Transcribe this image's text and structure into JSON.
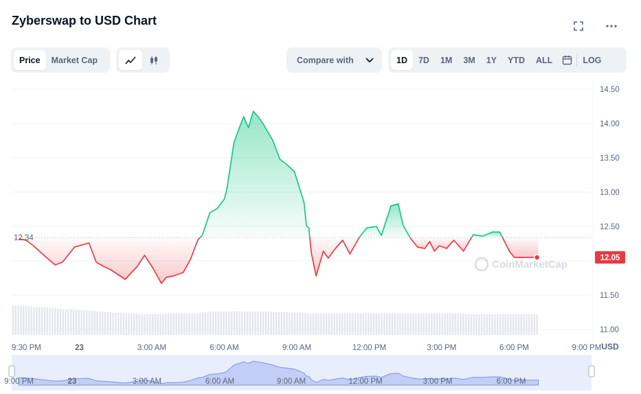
{
  "header": {
    "title": "Zyberswap to USD Chart",
    "fullscreen_icon": "fullscreen-icon",
    "more_icon": "more-dots-icon"
  },
  "toolbar": {
    "metric_tabs": [
      {
        "label": "Price",
        "active": true
      },
      {
        "label": "Market Cap",
        "active": false
      }
    ],
    "chart_type_icons": [
      "line-chart-icon",
      "candlestick-icon"
    ],
    "compare_label": "Compare with",
    "ranges": [
      {
        "label": "1D",
        "active": true
      },
      {
        "label": "7D",
        "active": false
      },
      {
        "label": "1M",
        "active": false
      },
      {
        "label": "3M",
        "active": false
      },
      {
        "label": "1Y",
        "active": false
      },
      {
        "label": "YTD",
        "active": false
      },
      {
        "label": "ALL",
        "active": false
      }
    ],
    "calendar_icon": "calendar-icon",
    "log_label": "LOG"
  },
  "colors": {
    "up": "#16c784",
    "down": "#ea3943",
    "navigator": "#7c93e8"
  },
  "chart_data": {
    "type": "area",
    "baseline": 12.34,
    "baseline_label": "12.34",
    "current_price": 12.05,
    "current_price_label": "12.05",
    "currency_label": "USD",
    "ylim": [
      11.0,
      14.5
    ],
    "y_ticks": [
      "14.50",
      "14.00",
      "13.50",
      "13.00",
      "12.50",
      "12.00",
      "11.50",
      "11.00"
    ],
    "x_ticks": [
      "9:30 PM",
      "23",
      "3:00 AM",
      "6:00 AM",
      "9:00 AM",
      "12:00 PM",
      "3:00 PM",
      "6:00 PM",
      "9:00 PM"
    ],
    "navigator_ticks": [
      "23",
      "3:00 AM",
      "6:00 AM",
      "9:00 AM",
      "12:00 PM",
      "3:00 PM",
      "6:00 PM",
      "9:00 PM"
    ],
    "watermark": "CoinMarketCap",
    "x_hours": [
      0,
      0.3,
      0.6,
      1.1,
      1.5,
      1.8,
      2.3,
      2.9,
      3.2,
      3.5,
      3.8,
      4.4,
      4.9,
      5.2,
      5.5,
      5.9,
      6.1,
      6.4,
      6.8,
      7.1,
      7.4,
      7.6,
      7.9,
      8.2,
      8.5,
      8.6,
      8.9,
      9.1,
      9.3,
      9.5,
      9.7,
      9.9,
      10.1,
      10.5,
      10.8,
      11.1,
      11.4,
      11.8,
      11.9,
      12.0,
      12.1,
      12.3,
      12.6,
      12.8,
      13.1,
      13.4,
      13.7,
      14.1,
      14.4,
      14.8,
      15.0,
      15.4,
      15.7,
      15.9,
      16.2,
      16.5,
      16.8,
      17.0,
      17.2,
      17.4,
      17.7,
      18.0,
      18.4,
      18.8,
      19.2,
      19.6,
      19.9,
      20.3,
      20.5,
      20.9,
      21.1,
      21.2,
      21.3,
      21.5
    ],
    "prices": [
      12.32,
      12.3,
      12.22,
      12.06,
      11.94,
      11.98,
      12.2,
      12.26,
      11.98,
      11.92,
      11.87,
      11.73,
      11.92,
      12.08,
      11.92,
      11.67,
      11.76,
      11.78,
      11.83,
      12.02,
      12.3,
      12.38,
      12.7,
      12.76,
      12.9,
      13.03,
      13.72,
      13.92,
      14.1,
      13.94,
      14.18,
      14.1,
      14.0,
      13.76,
      13.48,
      13.4,
      13.3,
      12.85,
      12.51,
      12.48,
      12.12,
      11.78,
      12.14,
      12.04,
      12.18,
      12.3,
      12.1,
      12.35,
      12.48,
      12.5,
      12.37,
      12.8,
      12.83,
      12.52,
      12.33,
      12.2,
      12.18,
      12.28,
      12.14,
      12.22,
      12.18,
      12.3,
      12.14,
      12.38,
      12.36,
      12.42,
      12.42,
      12.14,
      12.05,
      12.05,
      12.05,
      12.05,
      12.05,
      12.05
    ],
    "volume_relative": [
      0.82,
      0.8,
      0.78,
      0.76,
      0.74,
      0.72,
      0.7,
      0.68,
      0.66,
      0.64,
      0.62,
      0.6,
      0.58,
      0.58,
      0.58,
      0.59,
      0.6,
      0.6,
      0.6,
      0.6,
      0.62,
      0.64,
      0.66,
      0.66,
      0.66,
      0.66,
      0.67,
      0.66,
      0.66,
      0.66,
      0.66,
      0.66,
      0.66,
      0.64,
      0.64,
      0.63,
      0.63,
      0.62,
      0.6,
      0.6,
      0.6,
      0.6,
      0.6,
      0.6,
      0.6,
      0.6,
      0.6,
      0.6,
      0.6,
      0.6,
      0.6,
      0.6,
      0.6,
      0.6,
      0.6,
      0.6,
      0.6,
      0.6,
      0.6,
      0.6,
      0.6,
      0.6,
      0.58,
      0.58,
      0.58,
      0.58,
      0.58,
      0.58,
      0.58,
      0.58,
      0.58,
      0.58,
      0.58,
      0.58
    ]
  }
}
